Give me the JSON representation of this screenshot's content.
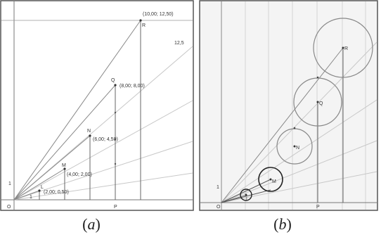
{
  "colors": {
    "frame": "#555555",
    "axis": "#777777",
    "ray": "#888888",
    "light_ray": "#bdbdbd",
    "drop_line": "#666666",
    "grid_b": "#d4d4d4",
    "bg_b": "#f4f4f4",
    "circle": "#888888",
    "circle_dark": "#222222",
    "text": "#333333"
  },
  "panel_a": {
    "origin": "O",
    "axis_y_tick": "1",
    "axis_x_tick": "1",
    "foot_label": "P",
    "slope_label": "12,5",
    "points": [
      {
        "name": "L",
        "coords": "(2,00; 0,50)"
      },
      {
        "name": "M",
        "coords": "(4,00; 2,00)"
      },
      {
        "name": "N",
        "coords": "(6,00; 4,50)"
      },
      {
        "name": "Q",
        "coords": "(8,00; 8,00)"
      },
      {
        "name": "R",
        "coords": "(10,00; 12,50)"
      }
    ]
  },
  "panel_b": {
    "origin": "O",
    "axis_y_tick": "1",
    "foot_label": "P",
    "points": [
      {
        "name": "L"
      },
      {
        "name": "M"
      },
      {
        "name": "N"
      },
      {
        "name": "Q"
      },
      {
        "name": "R"
      }
    ]
  },
  "captions": {
    "a": "a",
    "b": "b"
  }
}
